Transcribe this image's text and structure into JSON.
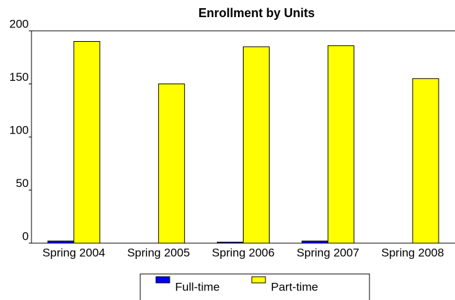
{
  "chart_data": {
    "type": "bar",
    "title": "Enrollment by Units",
    "categories": [
      "Spring 2004",
      "Spring 2005",
      "Spring 2006",
      "Spring 2007",
      "Spring 2008"
    ],
    "series": [
      {
        "name": "Full-time",
        "color": "#0000ff",
        "values": [
          2,
          0,
          1,
          2,
          0
        ]
      },
      {
        "name": "Part-time",
        "color": "#ffff00",
        "values": [
          190,
          150,
          185,
          186,
          155
        ]
      }
    ],
    "ylim": [
      0,
      200
    ],
    "yticks": [
      0,
      50,
      100,
      150,
      200
    ],
    "grid": false
  }
}
